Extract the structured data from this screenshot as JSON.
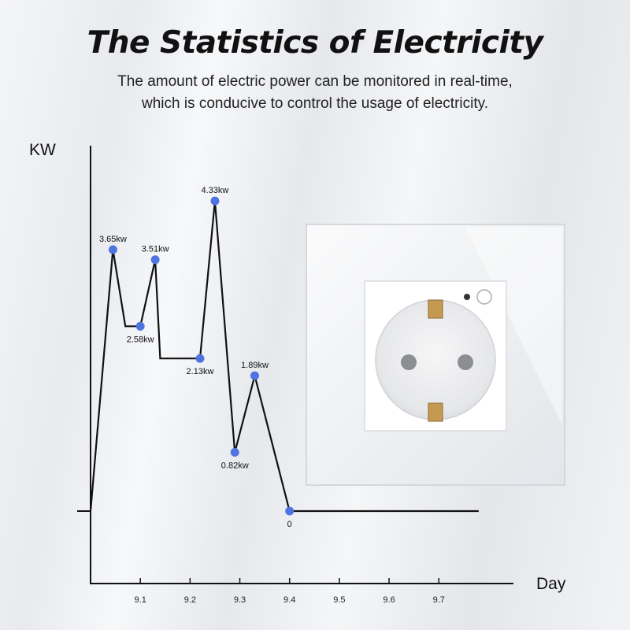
{
  "header": {
    "title": "The Statistics of Electricity",
    "subtitle_line1": "The amount of electric power can be monitored in real-time,",
    "subtitle_line2": "which is conducive to control the usage of electricity."
  },
  "colors": {
    "line": "#111111",
    "marker": "#4f74e0",
    "socket_frame": "#f3f4f6",
    "socket_body": "#ffffff"
  },
  "chart_data": {
    "type": "line",
    "ylabel": "KW",
    "xlabel": "Day",
    "x_ticks": [
      "9.1",
      "9.2",
      "9.3",
      "9.4",
      "9.5",
      "9.6",
      "9.7"
    ],
    "x_tick_values": [
      9.1,
      9.2,
      9.3,
      9.4,
      9.5,
      9.6,
      9.7
    ],
    "xlim": [
      8.97,
      9.82
    ],
    "ylim": [
      0,
      4.65
    ],
    "grid": false,
    "series": [
      {
        "points": [
          {
            "x": 9.0,
            "y": 0
          },
          {
            "x": 9.045,
            "y": 3.65
          },
          {
            "x": 9.07,
            "y": 2.58
          },
          {
            "x": 9.1,
            "y": 2.58
          },
          {
            "x": 9.13,
            "y": 3.51
          },
          {
            "x": 9.14,
            "y": 2.13
          },
          {
            "x": 9.22,
            "y": 2.13
          },
          {
            "x": 9.25,
            "y": 4.33
          },
          {
            "x": 9.29,
            "y": 0.82
          },
          {
            "x": 9.33,
            "y": 1.89
          },
          {
            "x": 9.4,
            "y": 0
          },
          {
            "x": 9.78,
            "y": 0
          }
        ]
      }
    ],
    "labeled_points": [
      {
        "x": 9.045,
        "y": 3.65,
        "label": "3.65kw",
        "pos": "above"
      },
      {
        "x": 9.1,
        "y": 2.58,
        "label": "2.58kw",
        "pos": "below"
      },
      {
        "x": 9.13,
        "y": 3.51,
        "label": "3.51kw",
        "pos": "above"
      },
      {
        "x": 9.22,
        "y": 2.13,
        "label": "2.13kw",
        "pos": "below"
      },
      {
        "x": 9.25,
        "y": 4.33,
        "label": "4.33kw",
        "pos": "above"
      },
      {
        "x": 9.29,
        "y": 0.82,
        "label": "0.82kw",
        "pos": "below"
      },
      {
        "x": 9.33,
        "y": 1.89,
        "label": "1.89kw",
        "pos": "above"
      },
      {
        "x": 9.4,
        "y": 0,
        "label": "0",
        "pos": "below"
      }
    ]
  },
  "product_image": {
    "name": "wall-socket-glass-panel"
  }
}
